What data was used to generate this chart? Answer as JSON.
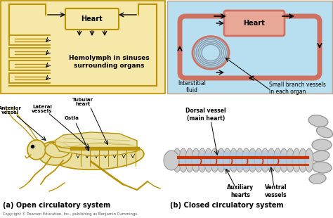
{
  "bg_color": "#ffffff",
  "top_left_bg": "#f5e8a8",
  "top_right_bg": "#b8dff0",
  "top_left_label": "Hemolymph in sinuses\nsurrounding organs",
  "top_right_label1": "Interstitial\nfluid",
  "top_right_label2": "Small branch vessels\nin each organ",
  "heart_label": "Heart",
  "label_a": "(a) Open circulatory system",
  "label_b": "(b) Closed circulatory system",
  "copyright": "Copyright © Pearson Education, Inc., publishing as Benjamin Cummings.",
  "open_labels": [
    "Anterior\nvessel",
    "Lateral\nvessels",
    "Tubular\nheart",
    "Ostia"
  ],
  "closed_labels": [
    "Dorsal vessel\n(main heart)",
    "Auxiliary\nhearts",
    "Ventral\nvessels"
  ],
  "open_color": "#b89000",
  "closed_loop_color": "#d07060",
  "closed_color_vessel": "#cc3300",
  "closed_bg_vessel": "#a8c8e8",
  "heart_fill_closed": "#e8a898",
  "arrow_color": "#111111",
  "grasshopper_body": "#e8dfa0",
  "grasshopper_outline": "#b89000",
  "worm_color": "#cccccc",
  "worm_outline": "#999999"
}
